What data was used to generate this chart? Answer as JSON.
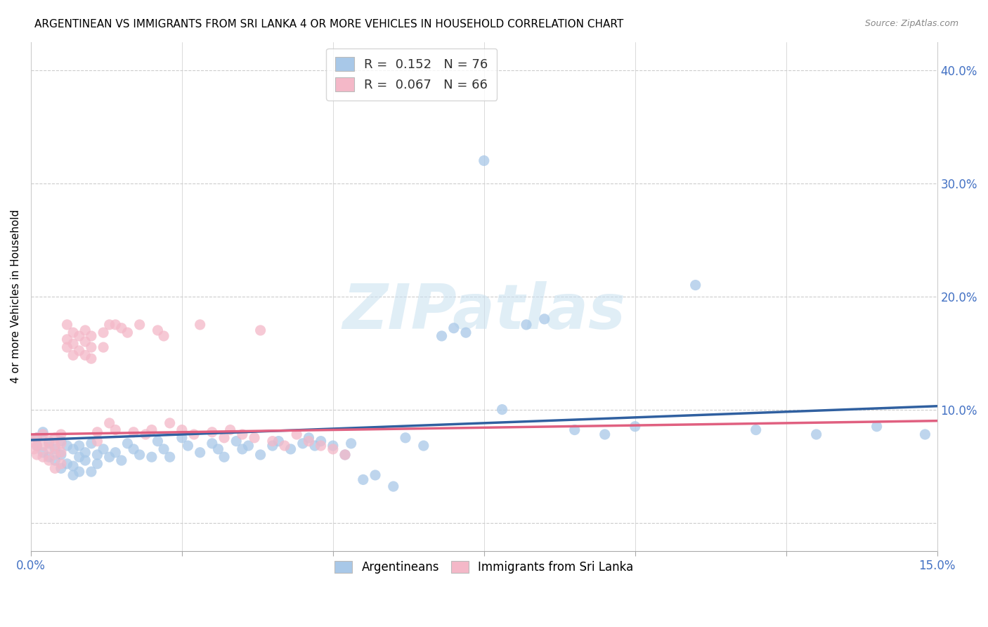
{
  "title": "ARGENTINEAN VS IMMIGRANTS FROM SRI LANKA 4 OR MORE VEHICLES IN HOUSEHOLD CORRELATION CHART",
  "source": "Source: ZipAtlas.com",
  "ylabel": "4 or more Vehicles in Household",
  "xlim": [
    0.0,
    0.15
  ],
  "ylim": [
    -0.025,
    0.425
  ],
  "blue_R": 0.152,
  "blue_N": 76,
  "pink_R": 0.067,
  "pink_N": 66,
  "blue_color": "#a8c8e8",
  "pink_color": "#f4b8c8",
  "blue_line_color": "#3060a0",
  "pink_line_color": "#e06080",
  "watermark": "ZIPatlas",
  "legend_label_blue": "Argentineans",
  "legend_label_pink": "Immigrants from Sri Lanka",
  "blue_x": [
    0.001,
    0.001,
    0.002,
    0.002,
    0.003,
    0.003,
    0.004,
    0.004,
    0.005,
    0.005,
    0.005,
    0.006,
    0.006,
    0.007,
    0.007,
    0.007,
    0.008,
    0.008,
    0.008,
    0.009,
    0.009,
    0.01,
    0.01,
    0.011,
    0.011,
    0.012,
    0.013,
    0.014,
    0.015,
    0.016,
    0.017,
    0.018,
    0.02,
    0.021,
    0.022,
    0.023,
    0.025,
    0.026,
    0.028,
    0.03,
    0.031,
    0.032,
    0.034,
    0.035,
    0.036,
    0.038,
    0.04,
    0.041,
    0.043,
    0.045,
    0.046,
    0.047,
    0.048,
    0.05,
    0.052,
    0.053,
    0.055,
    0.057,
    0.06,
    0.062,
    0.065,
    0.068,
    0.07,
    0.072,
    0.075,
    0.078,
    0.082,
    0.085,
    0.09,
    0.095,
    0.1,
    0.11,
    0.12,
    0.13,
    0.14,
    0.148
  ],
  "blue_y": [
    0.075,
    0.068,
    0.08,
    0.062,
    0.07,
    0.058,
    0.065,
    0.055,
    0.072,
    0.06,
    0.048,
    0.068,
    0.052,
    0.065,
    0.05,
    0.042,
    0.068,
    0.058,
    0.045,
    0.062,
    0.055,
    0.07,
    0.045,
    0.06,
    0.052,
    0.065,
    0.058,
    0.062,
    0.055,
    0.07,
    0.065,
    0.06,
    0.058,
    0.072,
    0.065,
    0.058,
    0.075,
    0.068,
    0.062,
    0.07,
    0.065,
    0.058,
    0.072,
    0.065,
    0.068,
    0.06,
    0.068,
    0.072,
    0.065,
    0.07,
    0.075,
    0.068,
    0.072,
    0.068,
    0.06,
    0.07,
    0.038,
    0.042,
    0.032,
    0.075,
    0.068,
    0.165,
    0.172,
    0.168,
    0.32,
    0.1,
    0.175,
    0.18,
    0.082,
    0.078,
    0.085,
    0.21,
    0.082,
    0.078,
    0.085,
    0.078
  ],
  "pink_x": [
    0.0002,
    0.0005,
    0.001,
    0.001,
    0.001,
    0.002,
    0.002,
    0.002,
    0.003,
    0.003,
    0.003,
    0.004,
    0.004,
    0.004,
    0.004,
    0.005,
    0.005,
    0.005,
    0.005,
    0.006,
    0.006,
    0.006,
    0.007,
    0.007,
    0.007,
    0.008,
    0.008,
    0.009,
    0.009,
    0.009,
    0.01,
    0.01,
    0.01,
    0.011,
    0.011,
    0.012,
    0.012,
    0.013,
    0.013,
    0.014,
    0.014,
    0.015,
    0.016,
    0.017,
    0.018,
    0.019,
    0.02,
    0.021,
    0.022,
    0.023,
    0.025,
    0.027,
    0.028,
    0.03,
    0.032,
    0.033,
    0.035,
    0.037,
    0.038,
    0.04,
    0.042,
    0.044,
    0.046,
    0.048,
    0.05,
    0.052
  ],
  "pink_y": [
    0.072,
    0.065,
    0.075,
    0.068,
    0.06,
    0.078,
    0.068,
    0.058,
    0.072,
    0.065,
    0.055,
    0.075,
    0.068,
    0.06,
    0.048,
    0.078,
    0.07,
    0.062,
    0.052,
    0.175,
    0.162,
    0.155,
    0.168,
    0.158,
    0.148,
    0.165,
    0.152,
    0.17,
    0.16,
    0.148,
    0.165,
    0.155,
    0.145,
    0.08,
    0.072,
    0.168,
    0.155,
    0.175,
    0.088,
    0.082,
    0.175,
    0.172,
    0.168,
    0.08,
    0.175,
    0.078,
    0.082,
    0.17,
    0.165,
    0.088,
    0.082,
    0.078,
    0.175,
    0.08,
    0.075,
    0.082,
    0.078,
    0.075,
    0.17,
    0.072,
    0.068,
    0.078,
    0.072,
    0.068,
    0.065,
    0.06
  ]
}
